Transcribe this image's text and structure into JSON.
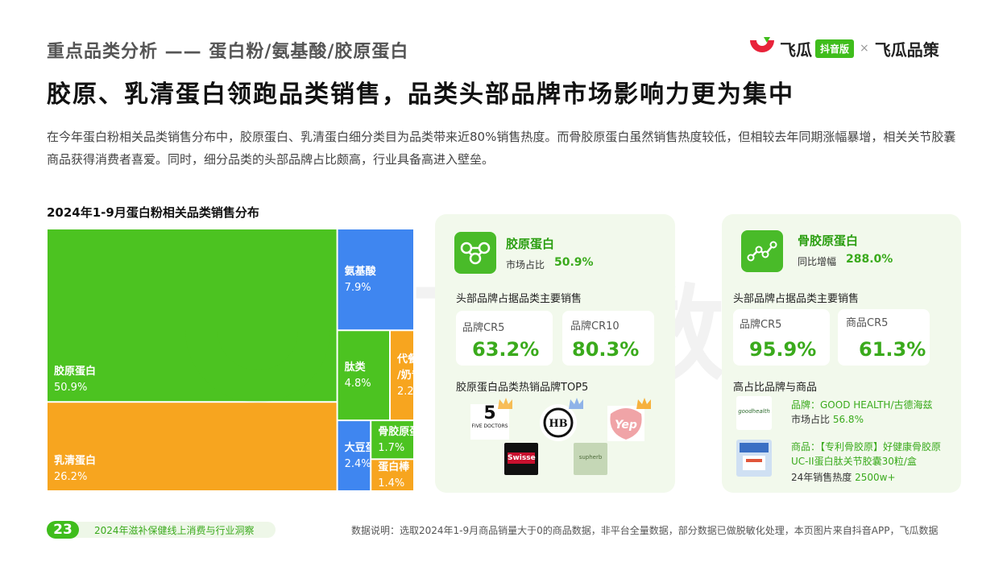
{
  "header": {
    "section_title": "重点品类分析 —— 蛋白粉/氨基酸/胶原蛋白",
    "headline": "胶原、乳清蛋白领跑品类销售，品类头部品牌市场影响力更为集中",
    "intro": "在今年蛋白粉相关品类销售分布中，胶原蛋白、乳清蛋白细分类目为品类带来近80%销售热度。而骨胶原蛋白虽然销售热度较低，但相较去年同期涨幅暴增，相关关节胶囊商品获得消费者喜爱。同时，细分品类的头部品牌占比颇高，行业具备高进入壁垒。"
  },
  "logo": {
    "brand": "飞瓜",
    "badge": "抖音版",
    "separator": "×",
    "brand2": "飞瓜品策",
    "accent": "#3fbd1c",
    "mark_color": "#e8233a"
  },
  "watermark": {
    "text": "飞瓜数据"
  },
  "chart_data": {
    "type": "treemap",
    "title": "2024年1-9月蛋白粉相关品类销售分布",
    "unit": "%",
    "items": [
      {
        "name": "胶原蛋白",
        "value": 50.9,
        "color": "#4cc321"
      },
      {
        "name": "乳清蛋白",
        "value": 26.2,
        "color": "#f7a51f"
      },
      {
        "name": "氨基酸",
        "value": 7.9,
        "color": "#3f86f0"
      },
      {
        "name": "肽类",
        "value": 4.8,
        "color": "#4cc321"
      },
      {
        "name": "代餐粉/奶昔",
        "value": 2.2,
        "color": "#f7a51f"
      },
      {
        "name": "大豆蛋白",
        "value": 2.4,
        "color": "#3f86f0"
      },
      {
        "name": "骨胶原蛋白",
        "value": 1.7,
        "color": "#4cc321"
      },
      {
        "name": "蛋白棒",
        "value": 1.4,
        "color": "#f7a51f"
      }
    ]
  },
  "card_collagen": {
    "name": "胶原蛋白",
    "metric_label": "市场占比",
    "metric_value": "50.9%",
    "sub_title": "头部品牌占据品类主要销售",
    "cr": [
      {
        "label": "品牌CR5",
        "value": "63.2%"
      },
      {
        "label": "品牌CR10",
        "value": "80.3%"
      }
    ],
    "top5_title": "胶原蛋白品类热销品牌TOP5",
    "brands": [
      {
        "name": "five-doctors",
        "number": "5",
        "caption": "FIVE DOCTORS"
      },
      {
        "name": "hb",
        "text": "HB"
      },
      {
        "name": "yep",
        "text": "Yep"
      },
      {
        "name": "swisse",
        "text": "Swisse"
      },
      {
        "name": "supherb",
        "text": "supherb"
      }
    ]
  },
  "card_bone": {
    "name": "骨胶原蛋白",
    "metric_label": "同比增幅",
    "metric_value": "288.0%",
    "sub_title": "头部品牌占据品类主要销售",
    "cr": [
      {
        "label": "品牌CR5",
        "value": "95.9%"
      },
      {
        "label": "商品CR5",
        "value": "61.3%"
      }
    ],
    "highlight_title": "高占比品牌与商品",
    "brand_line": "品牌：GOOD HEALTH/古德海兹",
    "brand_share_label": "市场占比",
    "brand_share_value": "56.8%",
    "brand_logo_text": "goodhealth",
    "product_line": "商品：【专利骨胶原】好健康骨胶原UC-II蛋白肽关节胶囊30粒/盒",
    "product_heat_label": "24年销售热度",
    "product_heat_value": "2500w+"
  },
  "footer": {
    "page": "23",
    "report": "2024年滋补保健线上消费与行业洞察",
    "note": "数据说明：选取2024年1-9月商品销量大于0的商品数据，非平台全量数据，部分数据已做脱敏化处理，本页图片来自抖音APP，飞瓜数据"
  }
}
